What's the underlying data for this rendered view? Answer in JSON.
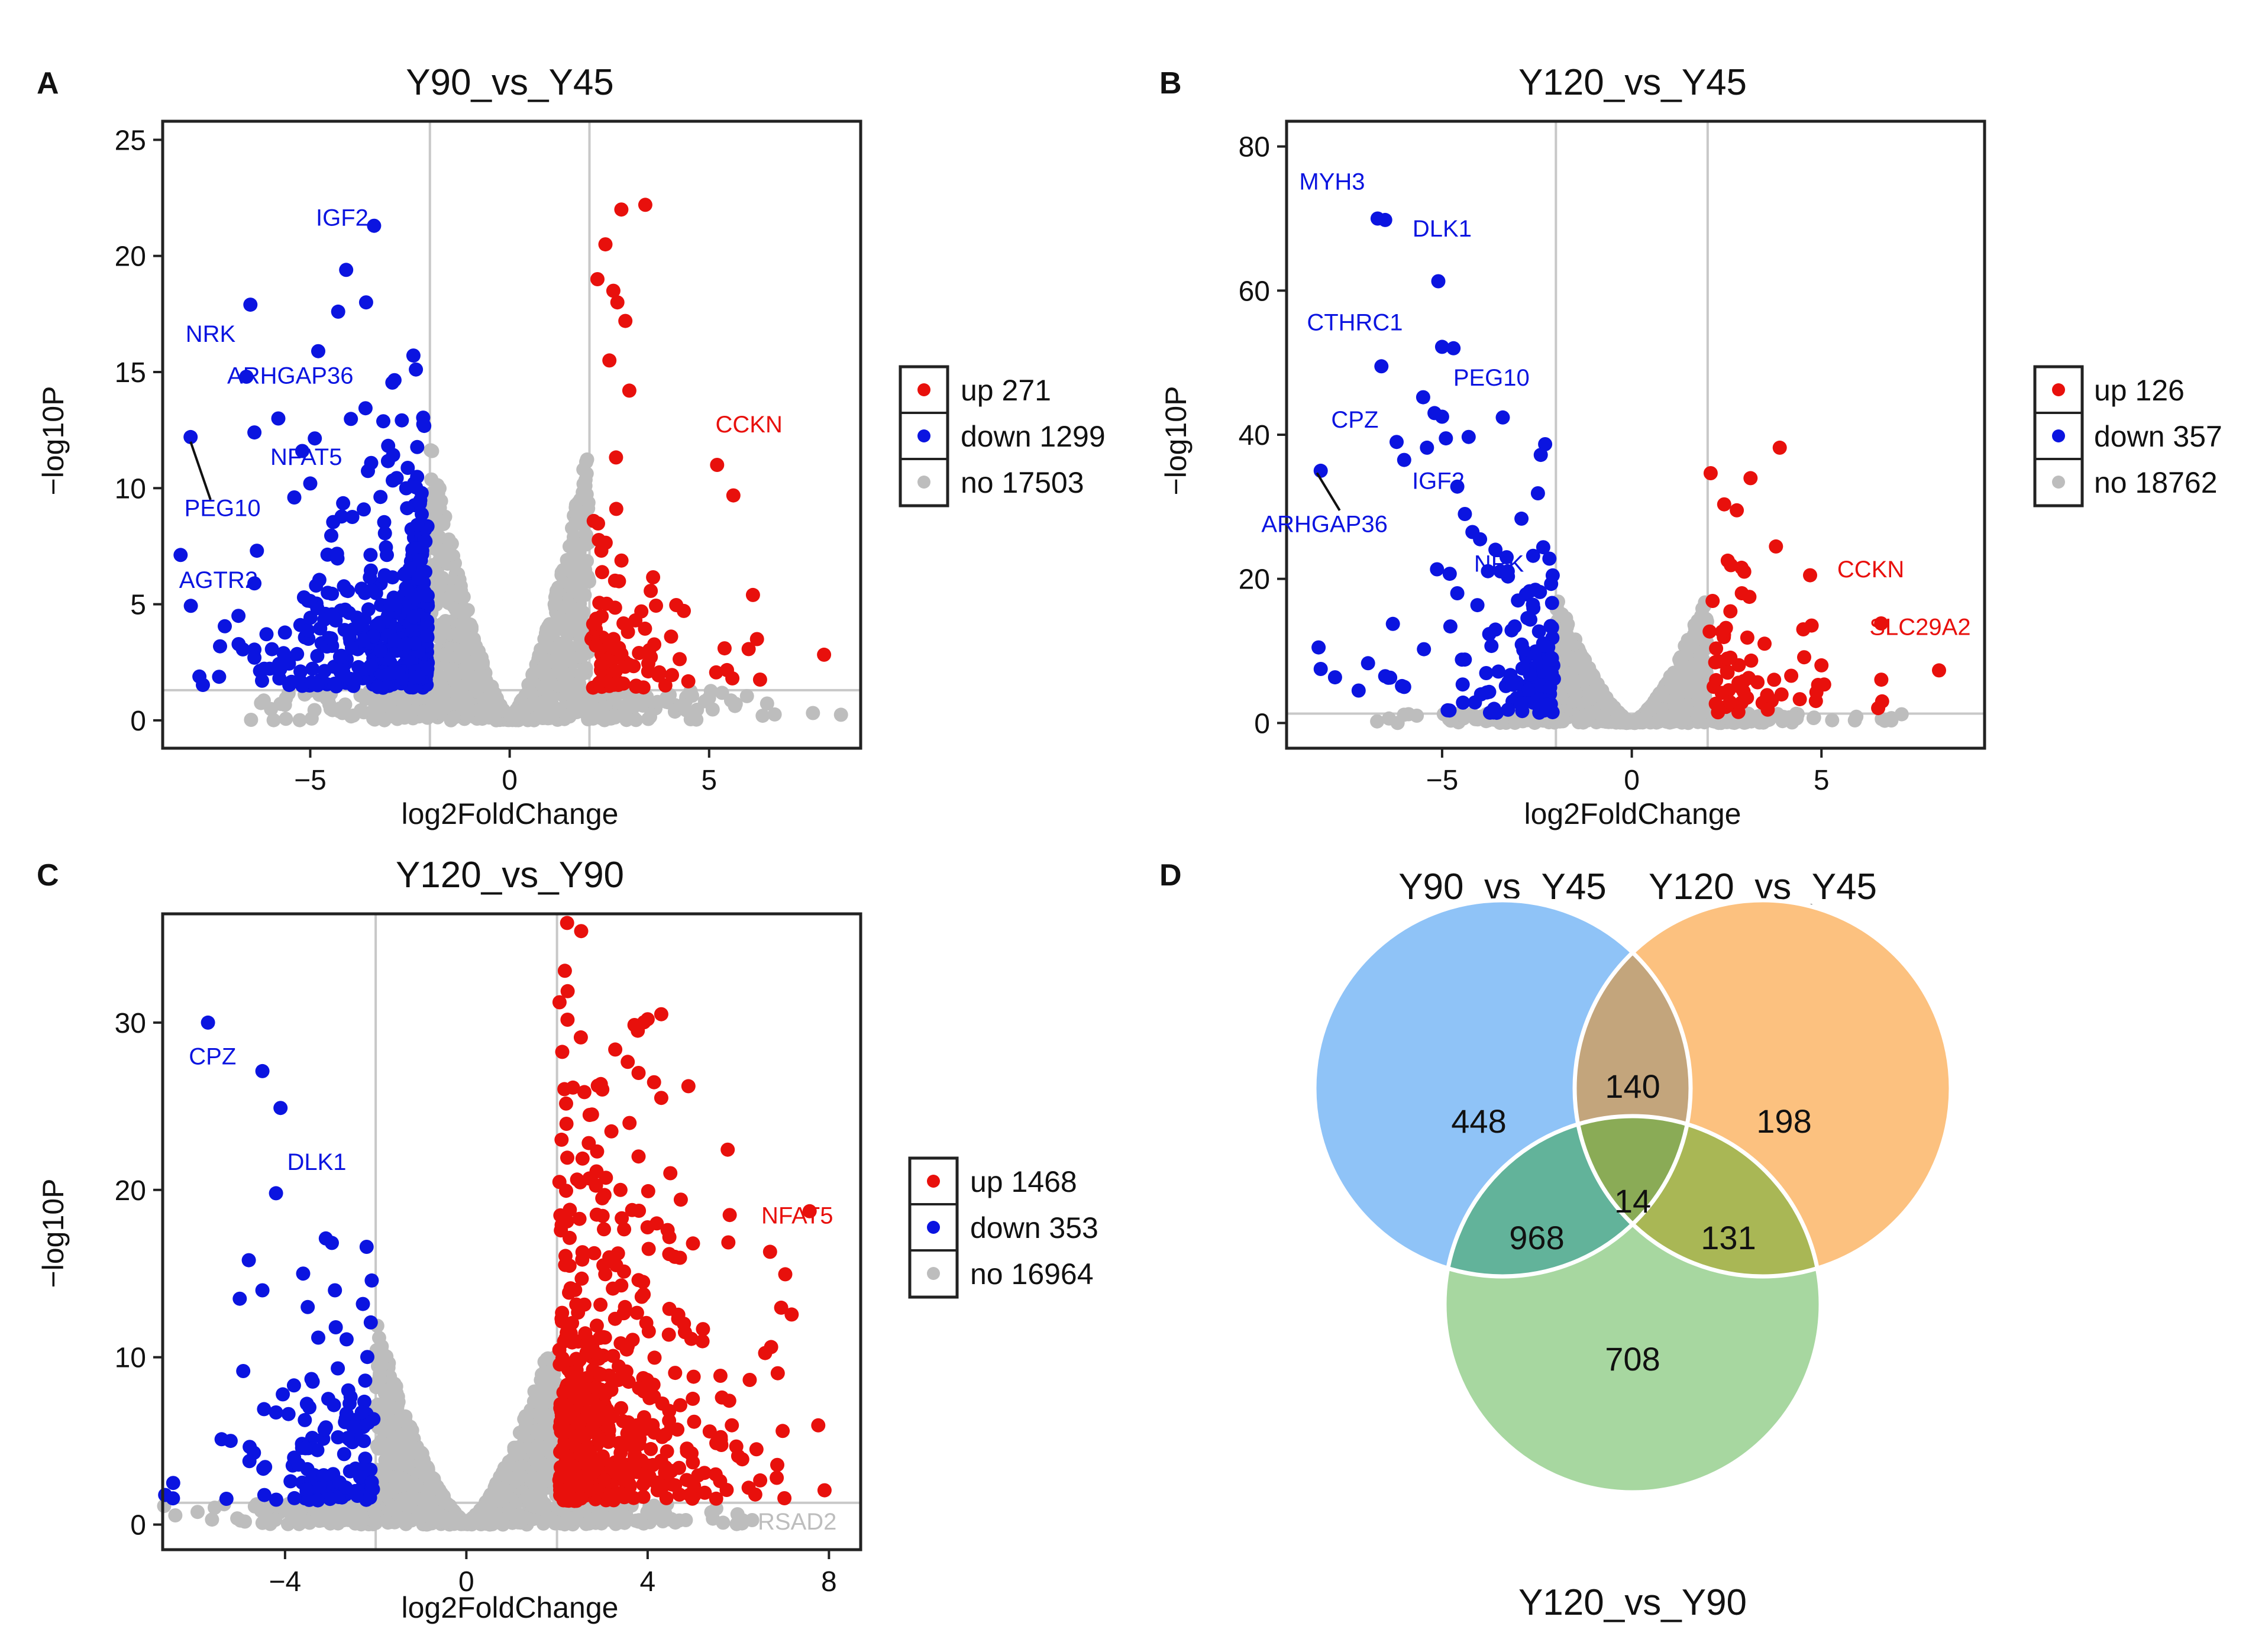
{
  "colors": {
    "up": "#e8100c",
    "down": "#0b14e0",
    "no": "#bdbdbd",
    "frame": "#222222",
    "grid": "#c8c8c8"
  },
  "chart_data": [
    {
      "panel": "A",
      "type": "scatter",
      "title": "Y90_vs_Y45",
      "xlabel": "log2FoldChange",
      "ylabel": "−log10P",
      "xlim": [
        -8.7,
        8.8
      ],
      "ylim": [
        -1.2,
        25.8
      ],
      "xticks": [
        -5,
        0,
        5
      ],
      "yticks": [
        0,
        5,
        10,
        15,
        20,
        25
      ],
      "xtick_labels": [
        "−5",
        "0",
        "5"
      ],
      "ytick_labels": [
        "0",
        "5",
        "10",
        "15",
        "20",
        "25"
      ],
      "thresholds": {
        "x": [
          -2,
          2
        ],
        "y": 1.3
      },
      "legend": [
        {
          "key": "up",
          "label": "up 271"
        },
        {
          "key": "down",
          "label": "down 1299"
        },
        {
          "key": "no",
          "label": "no 17503"
        }
      ],
      "counts": {
        "up": 271,
        "down": 1299,
        "no": 17503
      },
      "spread": {
        "down_cap": 5.5,
        "up_cap": 5.0,
        "no_cap": 12.0
      },
      "highlight": {
        "up": [
          [
            3.4,
            22.2
          ],
          [
            2.8,
            22.0
          ],
          [
            2.4,
            20.5
          ],
          [
            2.2,
            19.0
          ],
          [
            2.6,
            18.5
          ],
          [
            2.7,
            18.0
          ],
          [
            2.9,
            17.2
          ],
          [
            2.5,
            15.5
          ],
          [
            3.0,
            14.2
          ],
          [
            5.2,
            11.0
          ],
          [
            6.1,
            5.4
          ],
          [
            6.2,
            3.5
          ]
        ],
        "down": [
          [
            -3.4,
            21.3
          ],
          [
            -4.1,
            19.4
          ],
          [
            -3.6,
            18.0
          ],
          [
            -4.3,
            17.6
          ],
          [
            -6.5,
            17.9
          ],
          [
            -4.8,
            15.9
          ],
          [
            -6.6,
            14.8
          ],
          [
            -5.8,
            13.0
          ],
          [
            -6.4,
            12.4
          ],
          [
            -8.0,
            12.2
          ],
          [
            -5.2,
            11.6
          ],
          [
            -5.0,
            10.2
          ],
          [
            -5.4,
            9.6
          ],
          [
            -6.4,
            5.9
          ],
          [
            -6.8,
            4.5
          ],
          [
            -6.4,
            2.7
          ]
        ]
      },
      "labels": [
        {
          "text": "IGF2",
          "at": [
            -4.2,
            21.3
          ],
          "color": "down"
        },
        {
          "text": "NRK",
          "at": [
            -7.5,
            16.3
          ],
          "color": "down"
        },
        {
          "text": "ARHGAP36",
          "at": [
            -5.5,
            14.5
          ],
          "color": "down"
        },
        {
          "text": "NFAT5",
          "at": [
            -5.1,
            11.0
          ],
          "color": "down"
        },
        {
          "text": "PEG10",
          "at": [
            -7.2,
            8.8
          ],
          "color": "down"
        },
        {
          "text": "AGTR2",
          "at": [
            -7.3,
            5.7
          ],
          "color": "down"
        },
        {
          "text": "CCKN",
          "at": [
            6.0,
            12.4
          ],
          "color": "up"
        }
      ],
      "leader": [
        [
          -8.0,
          12.0
        ],
        [
          -7.5,
          9.5
        ]
      ]
    },
    {
      "panel": "B",
      "type": "scatter",
      "title": "Y120_vs_Y45",
      "xlabel": "log2FoldChange",
      "ylabel": "−log10P",
      "xlim": [
        -9.1,
        9.3
      ],
      "ylim": [
        -3.5,
        83.5
      ],
      "xticks": [
        -5,
        0,
        5
      ],
      "yticks": [
        0,
        20,
        40,
        60,
        80
      ],
      "xtick_labels": [
        "−5",
        "0",
        "5"
      ],
      "ytick_labels": [
        "0",
        "20",
        "40",
        "60",
        "80"
      ],
      "thresholds": {
        "x": [
          -2,
          2
        ],
        "y": 1.3
      },
      "legend": [
        {
          "key": "up",
          "label": "up 126"
        },
        {
          "key": "down",
          "label": "down 357"
        },
        {
          "key": "no",
          "label": "no 18762"
        }
      ],
      "counts": {
        "up": 126,
        "down": 357,
        "no": 18762
      },
      "spread": {
        "down_cap": 14.0,
        "up_cap": 14.0,
        "no_cap": 18.0
      },
      "highlight": {
        "up": [
          [
            3.9,
            38.2
          ],
          [
            3.8,
            24.5
          ],
          [
            4.7,
            20.5
          ],
          [
            8.1,
            7.3
          ],
          [
            5.0,
            8.0
          ],
          [
            6.6,
            3.0
          ],
          [
            2.9,
            18.0
          ],
          [
            3.1,
            17.5
          ],
          [
            2.6,
            15.5
          ],
          [
            3.5,
            11.0
          ]
        ],
        "down": [
          [
            -6.7,
            70.0
          ],
          [
            -6.5,
            69.8
          ],
          [
            -5.1,
            61.3
          ],
          [
            -5.0,
            52.2
          ],
          [
            -4.7,
            52.0
          ],
          [
            -6.6,
            49.5
          ],
          [
            -5.5,
            45.2
          ],
          [
            -5.2,
            43.0
          ],
          [
            -5.0,
            42.5
          ],
          [
            -4.9,
            39.5
          ],
          [
            -6.2,
            39.0
          ],
          [
            -4.3,
            39.7
          ],
          [
            -3.4,
            42.4
          ],
          [
            -2.4,
            37.2
          ],
          [
            -8.2,
            35.0
          ],
          [
            -6.0,
            36.5
          ],
          [
            -5.4,
            38.2
          ],
          [
            -4.6,
            32.8
          ],
          [
            -4.4,
            29.0
          ],
          [
            -4.2,
            26.5
          ],
          [
            -4.0,
            25.5
          ],
          [
            -3.3,
            23.0
          ],
          [
            -2.6,
            23.2
          ],
          [
            -4.8,
            20.7
          ],
          [
            -4.6,
            18.0
          ],
          [
            -3.0,
            17.0
          ],
          [
            -8.2,
            7.5
          ],
          [
            -6.5,
            6.5
          ],
          [
            -7.2,
            4.5
          ],
          [
            -6.0,
            5.0
          ]
        ]
      },
      "labels": [
        {
          "text": "MYH3",
          "at": [
            -7.9,
            74.0
          ],
          "color": "down"
        },
        {
          "text": "DLK1",
          "at": [
            -5.0,
            67.5
          ],
          "color": "down"
        },
        {
          "text": "CTHRC1",
          "at": [
            -7.3,
            54.5
          ],
          "color": "down"
        },
        {
          "text": "PEG10",
          "at": [
            -3.7,
            46.8
          ],
          "color": "down"
        },
        {
          "text": "CPZ",
          "at": [
            -7.3,
            41.0
          ],
          "color": "down"
        },
        {
          "text": "IGF2",
          "at": [
            -5.1,
            32.5
          ],
          "color": "down"
        },
        {
          "text": "ARHGAP36",
          "at": [
            -8.1,
            26.5
          ],
          "color": "down"
        },
        {
          "text": "NRK",
          "at": [
            -3.5,
            21.0
          ],
          "color": "down"
        },
        {
          "text": "CCKN",
          "at": [
            6.3,
            20.2
          ],
          "color": "up"
        },
        {
          "text": "SLC29A2",
          "at": [
            7.6,
            12.2
          ],
          "color": "up"
        }
      ],
      "leader": [
        [
          -8.3,
          34.7
        ],
        [
          -7.7,
          29.5
        ]
      ]
    },
    {
      "panel": "C",
      "type": "scatter",
      "title": "Y120_vs_Y90",
      "xlabel": "log2FoldChange",
      "ylabel": "−log10P",
      "xlim": [
        -6.7,
        8.7
      ],
      "ylim": [
        -1.5,
        36.5
      ],
      "xticks": [
        -4,
        0,
        4,
        8
      ],
      "yticks": [
        0,
        10,
        20,
        30
      ],
      "xtick_labels": [
        "−4",
        "0",
        "4",
        "8"
      ],
      "ytick_labels": [
        "0",
        "10",
        "20",
        "30"
      ],
      "thresholds": {
        "x": [
          -2,
          2
        ],
        "y": 1.3
      },
      "legend": [
        {
          "key": "up",
          "label": "up 1468"
        },
        {
          "key": "down",
          "label": "down 353"
        },
        {
          "key": "no",
          "label": "no 16964"
        }
      ],
      "counts": {
        "up": 1468,
        "down": 353,
        "no": 16964
      },
      "spread": {
        "down_cap": 6.5,
        "up_cap": 14.0,
        "no_cap": 12.0
      },
      "highlight": {
        "up": [
          [
            4.3,
            30.5
          ],
          [
            4.0,
            30.2
          ],
          [
            3.0,
            26.0
          ],
          [
            4.9,
            26.2
          ],
          [
            4.3,
            25.5
          ],
          [
            3.6,
            24.0
          ],
          [
            3.2,
            23.5
          ],
          [
            2.1,
            23.0
          ],
          [
            2.7,
            22.8
          ],
          [
            3.8,
            22.0
          ],
          [
            4.5,
            21.0
          ],
          [
            3.4,
            20.0
          ],
          [
            3.0,
            19.5
          ],
          [
            4.2,
            18.0
          ],
          [
            4.6,
            16.0
          ],
          [
            6.7,
            16.3
          ],
          [
            5.0,
            16.8
          ],
          [
            5.8,
            7.4
          ],
          [
            6.4,
            4.5
          ],
          [
            5.5,
            3.0
          ],
          [
            2.2,
            11.0
          ],
          [
            3.5,
            13.0
          ],
          [
            3.9,
            14.5
          ],
          [
            4.8,
            12.0
          ]
        ],
        "down": [
          [
            -5.7,
            30.0
          ],
          [
            -4.5,
            27.1
          ],
          [
            -4.1,
            24.9
          ],
          [
            -4.2,
            19.8
          ],
          [
            -3.1,
            17.1
          ],
          [
            -2.2,
            16.6
          ],
          [
            -4.8,
            15.8
          ],
          [
            -3.6,
            15.0
          ],
          [
            -4.5,
            14.0
          ],
          [
            -5.0,
            13.5
          ],
          [
            -2.9,
            14.0
          ],
          [
            -3.5,
            13.0
          ],
          [
            -4.2,
            6.7
          ],
          [
            -5.4,
            5.1
          ],
          [
            -5.2,
            5.0
          ],
          [
            -3.8,
            4.0
          ]
        ]
      },
      "labels": [
        {
          "text": "CPZ",
          "at": [
            -5.6,
            27.5
          ],
          "color": "down"
        },
        {
          "text": "DLK1",
          "at": [
            -3.3,
            21.2
          ],
          "color": "down"
        },
        {
          "text": "NFAT5",
          "at": [
            7.3,
            18.0
          ],
          "color": "up"
        },
        {
          "text": "RSAD2",
          "at": [
            7.3,
            -0.3
          ],
          "color": "no"
        }
      ],
      "leader": null
    }
  ],
  "venn": {
    "panel": "D",
    "sets": [
      {
        "name": "Y90_vs_Y45",
        "color": "#8fc3f7",
        "label_color": "#3f9cf0"
      },
      {
        "name": "Y120_vs_Y45",
        "color": "#fcc17f",
        "label_color": "#f49a38"
      },
      {
        "name": "Y120_vs_Y90",
        "color": "#a7d7a0",
        "label_color": "#3fb348"
      }
    ],
    "regions": [
      {
        "value": "448",
        "fill": "#8fc3f7"
      },
      {
        "value": "198",
        "fill": "#fcc17f"
      },
      {
        "value": "708",
        "fill": "#a7d7a0"
      },
      {
        "value": "140",
        "fill": "#c3a57c"
      },
      {
        "value": "968",
        "fill": "#62b39a"
      },
      {
        "value": "131",
        "fill": "#a9b755"
      },
      {
        "value": "14",
        "fill": "#8aab56"
      }
    ]
  }
}
